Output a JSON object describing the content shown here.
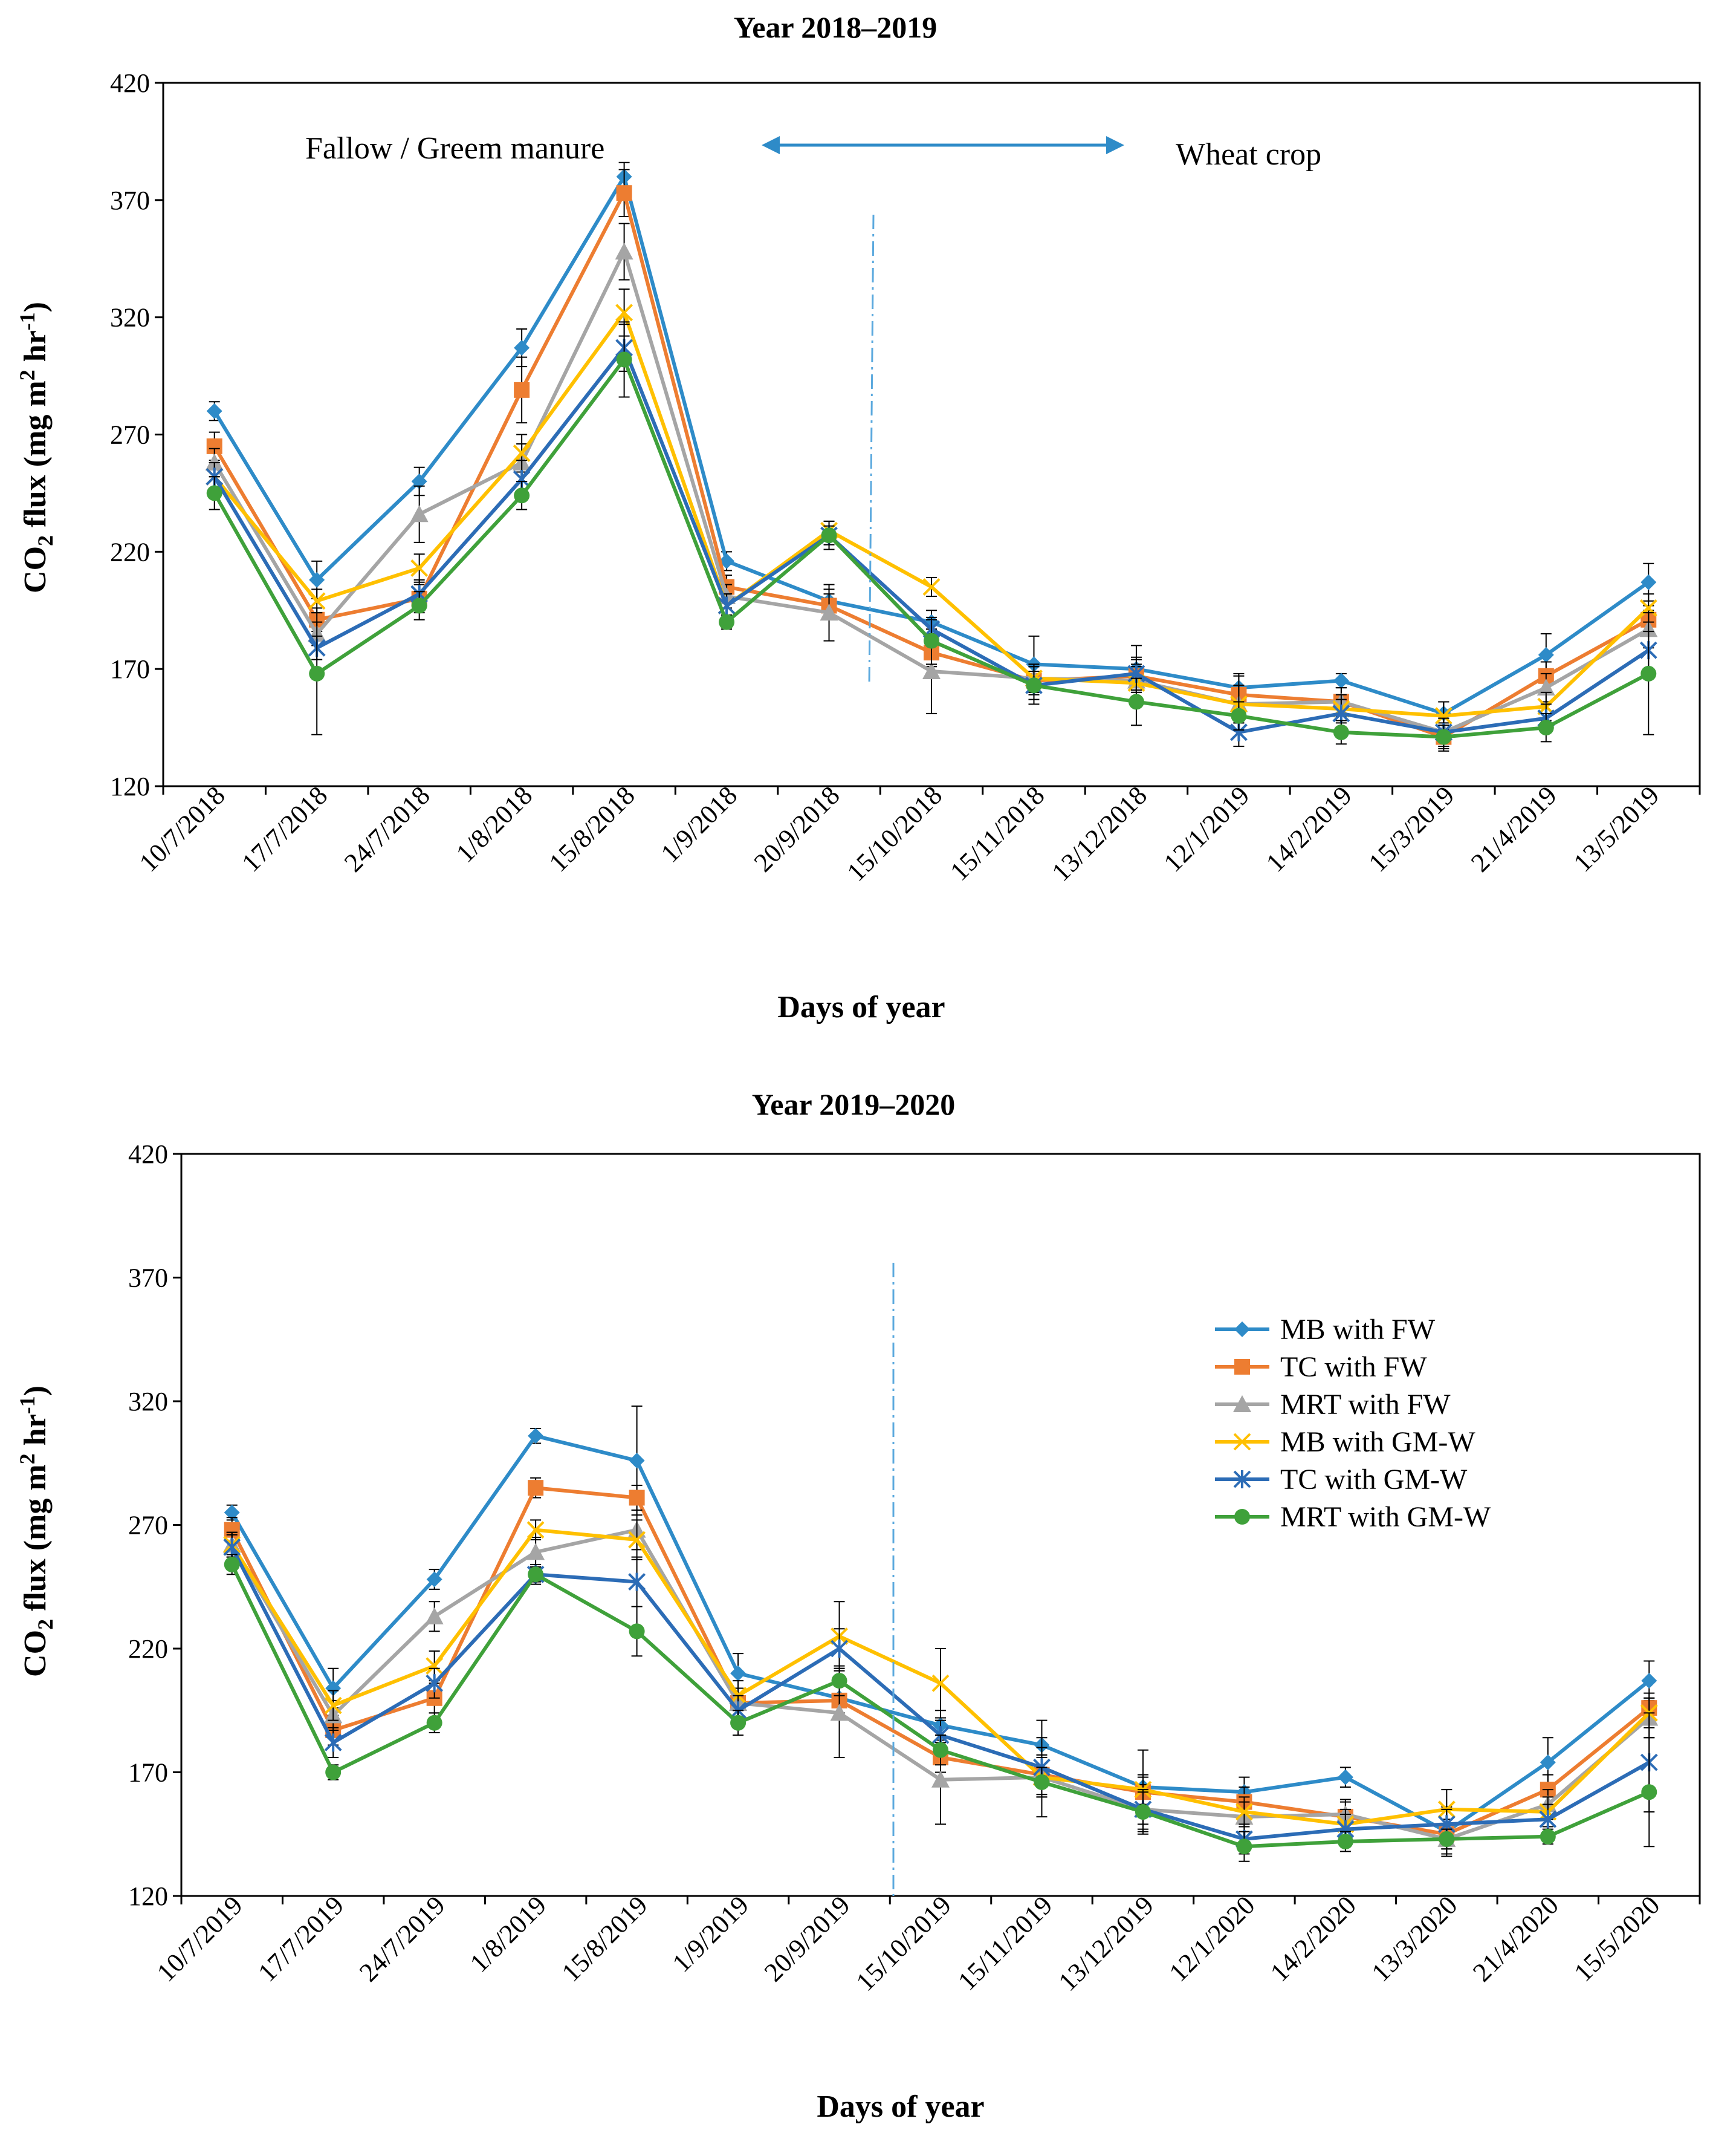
{
  "series_styles": [
    {
      "name": "MB with FW",
      "color": "#2E8BC8",
      "marker": "diamond"
    },
    {
      "name": "TC with FW",
      "color": "#ED7D31",
      "marker": "square"
    },
    {
      "name": "MRT with FW",
      "color": "#A5A5A5",
      "marker": "triangle"
    },
    {
      "name": "MB with GM-W",
      "color": "#FFC000",
      "marker": "x"
    },
    {
      "name": "TC with GM-W",
      "color": "#2C6CB6",
      "marker": "star"
    },
    {
      "name": "MRT with GM-W",
      "color": "#3FA13A",
      "marker": "circle"
    }
  ],
  "annotations": {
    "fallow": "Fallow / Greem manure",
    "wheat": "Wheat crop"
  },
  "chart_data": [
    {
      "type": "line",
      "title": "Year 2018–2019",
      "xlabel": "Days of year",
      "ylabel": "CO2 flux (mg m2 hr-1)",
      "ylim": [
        120,
        420
      ],
      "yticks": [
        120,
        170,
        220,
        270,
        320,
        370,
        420
      ],
      "categories": [
        "10/7/2018",
        "17/7/2018",
        "24/7/2018",
        "1/8/2018",
        "15/8/2018",
        "1/9/2018",
        "20/9/2018",
        "15/10/2018",
        "15/11/2018",
        "13/12/2018",
        "12/1/2019",
        "14/2/2019",
        "15/3/2019",
        "21/4/2019",
        "13/5/2019"
      ],
      "series": [
        {
          "name": "MB with FW",
          "values": [
            280,
            208,
            250,
            307,
            380,
            216,
            199,
            190,
            172,
            170,
            162,
            165,
            151,
            176,
            207
          ],
          "errors": [
            4,
            8,
            6,
            8,
            6,
            4,
            5,
            5,
            12,
            10,
            6,
            3,
            5,
            9,
            8
          ]
        },
        {
          "name": "TC with FW",
          "values": [
            265,
            191,
            200,
            289,
            373,
            205,
            197,
            177,
            165,
            167,
            159,
            156,
            141,
            167,
            191
          ],
          "errors": [
            6,
            5,
            6,
            14,
            10,
            5,
            5,
            6,
            6,
            7,
            8,
            6,
            6,
            6,
            6
          ]
        },
        {
          "name": "MRT with FW",
          "values": [
            258,
            185,
            236,
            258,
            348,
            201,
            194,
            169,
            166,
            165,
            155,
            156,
            143,
            162,
            187
          ],
          "errors": [
            6,
            5,
            12,
            8,
            12,
            5,
            12,
            18,
            6,
            7,
            8,
            6,
            6,
            6,
            8
          ]
        },
        {
          "name": "MB with GM-W",
          "values": [
            252,
            199,
            213,
            262,
            322,
            197,
            229,
            205,
            166,
            164,
            155,
            153,
            150,
            154,
            196
          ],
          "errors": [
            6,
            5,
            6,
            8,
            10,
            5,
            4,
            4,
            6,
            7,
            8,
            6,
            6,
            6,
            6
          ]
        },
        {
          "name": "TC with GM-W",
          "values": [
            252,
            179,
            202,
            251,
            307,
            197,
            227,
            187,
            163,
            168,
            143,
            151,
            143,
            149,
            178
          ],
          "errors": [
            6,
            5,
            6,
            8,
            10,
            5,
            4,
            4,
            6,
            7,
            6,
            6,
            6,
            6,
            8
          ]
        },
        {
          "name": "MRT with GM-W",
          "values": [
            245,
            168,
            197,
            244,
            302,
            190,
            227,
            182,
            163,
            156,
            150,
            143,
            141,
            145,
            168
          ],
          "errors": [
            7,
            26,
            6,
            6,
            16,
            3,
            6,
            10,
            8,
            10,
            6,
            5,
            5,
            6,
            26
          ]
        }
      ]
    },
    {
      "type": "line",
      "title": "Year 2019–2020",
      "xlabel": "Days of year",
      "ylabel": "CO2 flux (mg m2 hr-1)",
      "ylim": [
        120,
        420
      ],
      "yticks": [
        120,
        170,
        220,
        270,
        320,
        370,
        420
      ],
      "legend_position": "right",
      "categories": [
        "10/7/2019",
        "17/7/2019",
        "24/7/2019",
        "1/8/2019",
        "15/8/2019",
        "1/9/2019",
        "20/9/2019",
        "15/10/2019",
        "15/11/2019",
        "13/12/2019",
        "12/1/2020",
        "14/2/2020",
        "13/3/2020",
        "21/4/2020",
        "15/5/2020"
      ],
      "series": [
        {
          "name": "MB with FW",
          "values": [
            275,
            204,
            248,
            306,
            296,
            210,
            200,
            189,
            181,
            164,
            162,
            168,
            146,
            174,
            207
          ],
          "errors": [
            3,
            8,
            4,
            3,
            22,
            8,
            6,
            6,
            10,
            15,
            6,
            4,
            10,
            10,
            8
          ]
        },
        {
          "name": "TC with FW",
          "values": [
            268,
            187,
            200,
            285,
            281,
            198,
            199,
            176,
            169,
            162,
            158,
            152,
            145,
            163,
            196
          ],
          "errors": [
            5,
            6,
            6,
            4,
            5,
            6,
            6,
            6,
            8,
            6,
            6,
            6,
            6,
            6,
            6
          ]
        },
        {
          "name": "MRT with FW",
          "values": [
            262,
            193,
            233,
            259,
            268,
            198,
            194,
            167,
            168,
            155,
            152,
            153,
            143,
            157,
            192
          ],
          "errors": [
            5,
            6,
            6,
            6,
            8,
            6,
            18,
            18,
            16,
            10,
            6,
            6,
            6,
            6,
            8
          ]
        },
        {
          "name": "MB with GM-W",
          "values": [
            262,
            197,
            213,
            268,
            264,
            201,
            225,
            206,
            168,
            163,
            154,
            149,
            155,
            154,
            194
          ],
          "errors": [
            5,
            6,
            6,
            4,
            8,
            6,
            14,
            14,
            8,
            6,
            6,
            6,
            8,
            6,
            6
          ]
        },
        {
          "name": "TC with GM-W",
          "values": [
            261,
            182,
            206,
            250,
            247,
            195,
            220,
            185,
            172,
            155,
            143,
            147,
            149,
            151,
            174
          ],
          "errors": [
            5,
            6,
            6,
            4,
            10,
            6,
            8,
            6,
            8,
            8,
            6,
            6,
            6,
            6,
            20
          ]
        },
        {
          "name": "MRT with GM-W",
          "values": [
            254,
            170,
            190,
            250,
            227,
            190,
            207,
            179,
            166,
            154,
            140,
            142,
            143,
            144,
            162
          ],
          "errors": [
            4,
            3,
            4,
            3,
            10,
            5,
            6,
            6,
            6,
            8,
            6,
            4,
            4,
            3,
            22
          ]
        }
      ]
    }
  ]
}
